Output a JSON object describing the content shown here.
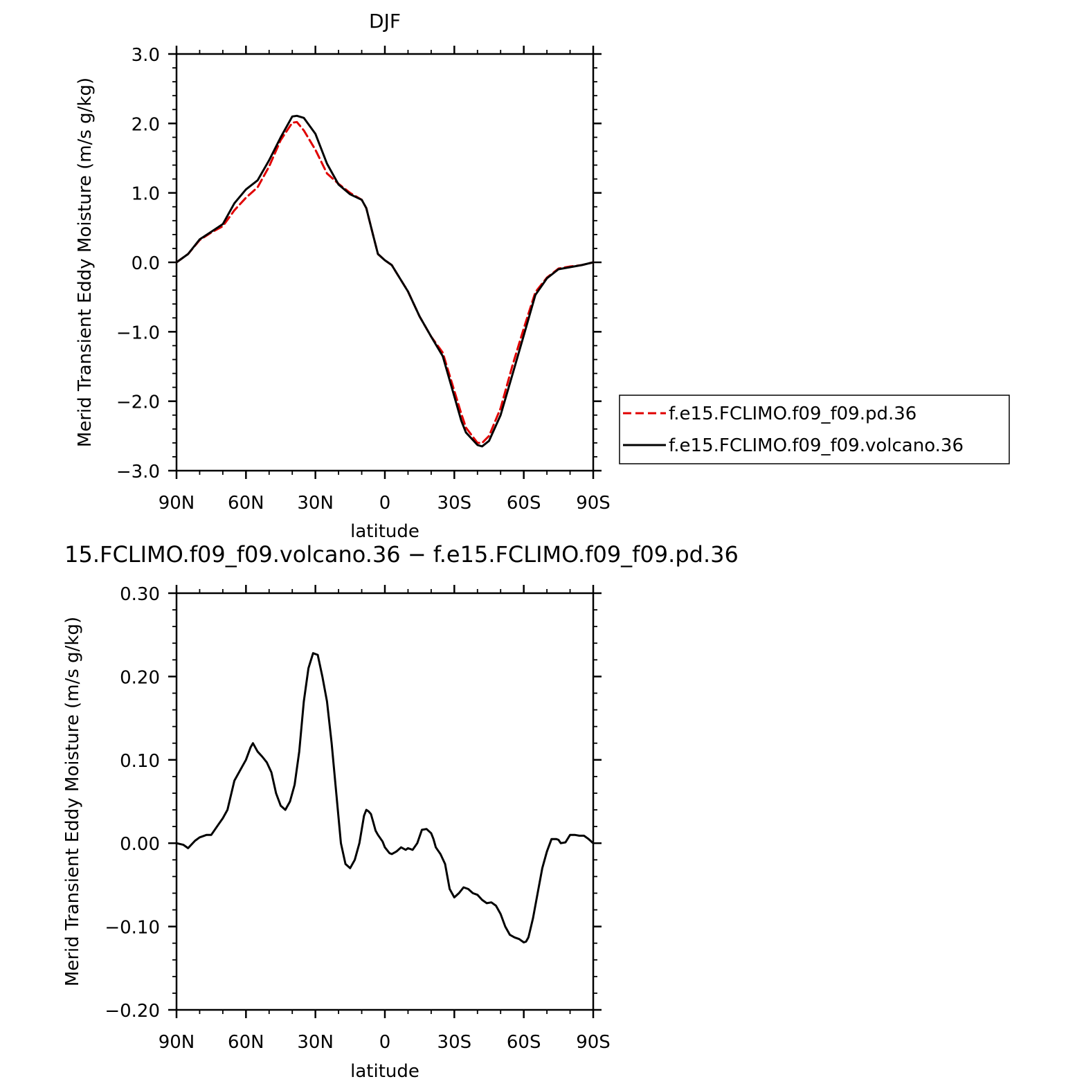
{
  "chart_data": [
    {
      "type": "line",
      "title": "DJF",
      "xlabel": "latitude",
      "ylabel": "Merid Transient Eddy Moisture (m/s g/kg)",
      "xlim": [
        90,
        -90
      ],
      "ylim": [
        -3.0,
        3.0
      ],
      "x_ticks": [
        90,
        60,
        30,
        0,
        -30,
        -60,
        -90
      ],
      "x_tick_labels": [
        "90N",
        "60N",
        "30N",
        "0",
        "30S",
        "60S",
        "90S"
      ],
      "y_ticks": [
        -3,
        -2,
        -1,
        0,
        1,
        2,
        3
      ],
      "y_tick_labels": [
        "−3.0",
        "−2.0",
        "−1.0",
        "0.0",
        "1.0",
        "2.0",
        "3.0"
      ],
      "grid": false,
      "legend": {
        "placement": "right of plot"
      },
      "series": [
        {
          "name": "f.e15.FCLIMO.f09_f09.pd.36",
          "color": "#e00000",
          "dash": "dashed",
          "x": [
            90,
            85,
            80,
            75,
            70,
            65,
            60,
            55,
            50,
            45,
            40,
            38,
            35,
            30,
            25,
            20,
            15,
            10,
            8,
            5,
            3,
            0,
            -3,
            -5,
            -10,
            -15,
            -20,
            -25,
            -30,
            -33,
            -35,
            -40,
            -42,
            -45,
            -50,
            -55,
            -60,
            -65,
            -70,
            -75,
            -80,
            -85,
            -90
          ],
          "values": [
            0.0,
            0.12,
            0.32,
            0.43,
            0.52,
            0.75,
            0.93,
            1.08,
            1.38,
            1.76,
            2.01,
            2.02,
            1.9,
            1.62,
            1.28,
            1.13,
            1.0,
            0.9,
            0.78,
            0.38,
            0.12,
            0.03,
            -0.04,
            -0.15,
            -0.42,
            -0.78,
            -1.07,
            -1.3,
            -1.85,
            -2.18,
            -2.38,
            -2.6,
            -2.6,
            -2.5,
            -2.1,
            -1.5,
            -0.95,
            -0.43,
            -0.22,
            -0.09,
            -0.06,
            -0.04,
            0.0
          ]
        },
        {
          "name": "f.e15.FCLIMO.f09_f09.volcano.36",
          "color": "#000000",
          "dash": "solid",
          "x": [
            90,
            85,
            80,
            75,
            70,
            65,
            60,
            55,
            50,
            45,
            40,
            38,
            35,
            30,
            25,
            20,
            15,
            10,
            8,
            5,
            3,
            0,
            -3,
            -5,
            -10,
            -15,
            -20,
            -25,
            -30,
            -33,
            -35,
            -40,
            -42,
            -45,
            -50,
            -55,
            -60,
            -65,
            -70,
            -75,
            -80,
            -85,
            -90
          ],
          "values": [
            0.0,
            0.12,
            0.33,
            0.44,
            0.55,
            0.85,
            1.05,
            1.18,
            1.47,
            1.8,
            2.1,
            2.11,
            2.08,
            1.85,
            1.42,
            1.12,
            0.98,
            0.9,
            0.78,
            0.38,
            0.12,
            0.03,
            -0.04,
            -0.15,
            -0.42,
            -0.78,
            -1.07,
            -1.35,
            -1.93,
            -2.28,
            -2.45,
            -2.63,
            -2.65,
            -2.57,
            -2.2,
            -1.63,
            -1.05,
            -0.47,
            -0.23,
            -0.1,
            -0.07,
            -0.04,
            0.0
          ]
        }
      ]
    },
    {
      "type": "line",
      "title": "15.FCLIMO.f09_f09.volcano.36 − f.e15.FCLIMO.f09_f09.pd.36",
      "xlabel": "latitude",
      "ylabel": "Merid Transient Eddy Moisture (m/s g/kg)",
      "xlim": [
        90,
        -90
      ],
      "ylim": [
        -0.2,
        0.3
      ],
      "x_ticks": [
        90,
        60,
        30,
        0,
        -30,
        -60,
        -90
      ],
      "x_tick_labels": [
        "90N",
        "60N",
        "30N",
        "0",
        "30S",
        "60S",
        "90S"
      ],
      "y_ticks": [
        -0.2,
        -0.1,
        0.0,
        0.1,
        0.2,
        0.3
      ],
      "y_tick_labels": [
        "−0.20",
        "−0.10",
        "0.00",
        "0.10",
        "0.20",
        "0.30"
      ],
      "grid": false,
      "series": [
        {
          "color": "#000000",
          "dash": "solid",
          "x": [
            90,
            87,
            85,
            82,
            80,
            77,
            75,
            72,
            70,
            68,
            65,
            62,
            60,
            58,
            57,
            55,
            53,
            51,
            49,
            47,
            45,
            43,
            41,
            39,
            37,
            35,
            33,
            31,
            29,
            27,
            25,
            23,
            21,
            19,
            17,
            15,
            13,
            11,
            9,
            8,
            7,
            6,
            5,
            4,
            3,
            1,
            0,
            -2,
            -3,
            -5,
            -7,
            -9,
            -10,
            -12,
            -14,
            -16,
            -18,
            -20,
            -21,
            -22,
            -24,
            -26,
            -28,
            -30,
            -32,
            -34,
            -36,
            -38,
            -40,
            -42,
            -44,
            -46,
            -48,
            -50,
            -52,
            -54,
            -56,
            -58,
            -60,
            -61,
            -62,
            -64,
            -66,
            -68,
            -70,
            -72,
            -74,
            -75,
            -76,
            -78,
            -80,
            -82,
            -84,
            -86,
            -88,
            -90
          ],
          "values": [
            0.0,
            -0.002,
            -0.006,
            0.003,
            0.007,
            0.01,
            0.01,
            0.022,
            0.03,
            0.04,
            0.075,
            0.09,
            0.1,
            0.115,
            0.12,
            0.11,
            0.104,
            0.097,
            0.085,
            0.06,
            0.045,
            0.04,
            0.05,
            0.07,
            0.11,
            0.17,
            0.21,
            0.228,
            0.226,
            0.2,
            0.17,
            0.12,
            0.06,
            0.0,
            -0.025,
            -0.03,
            -0.02,
            0.0,
            0.033,
            0.04,
            0.038,
            0.035,
            0.025,
            0.015,
            0.01,
            0.002,
            -0.005,
            -0.012,
            -0.013,
            -0.01,
            -0.005,
            -0.008,
            -0.006,
            -0.008,
            0.0,
            0.016,
            0.017,
            0.012,
            0.005,
            -0.005,
            -0.013,
            -0.025,
            -0.055,
            -0.065,
            -0.06,
            -0.053,
            -0.055,
            -0.06,
            -0.062,
            -0.068,
            -0.072,
            -0.071,
            -0.075,
            -0.085,
            -0.1,
            -0.11,
            -0.113,
            -0.115,
            -0.119,
            -0.118,
            -0.113,
            -0.09,
            -0.06,
            -0.03,
            -0.01,
            0.005,
            0.005,
            0.004,
            0.0,
            0.001,
            0.01,
            0.01,
            0.009,
            0.009,
            0.005,
            0.0
          ]
        }
      ]
    }
  ]
}
